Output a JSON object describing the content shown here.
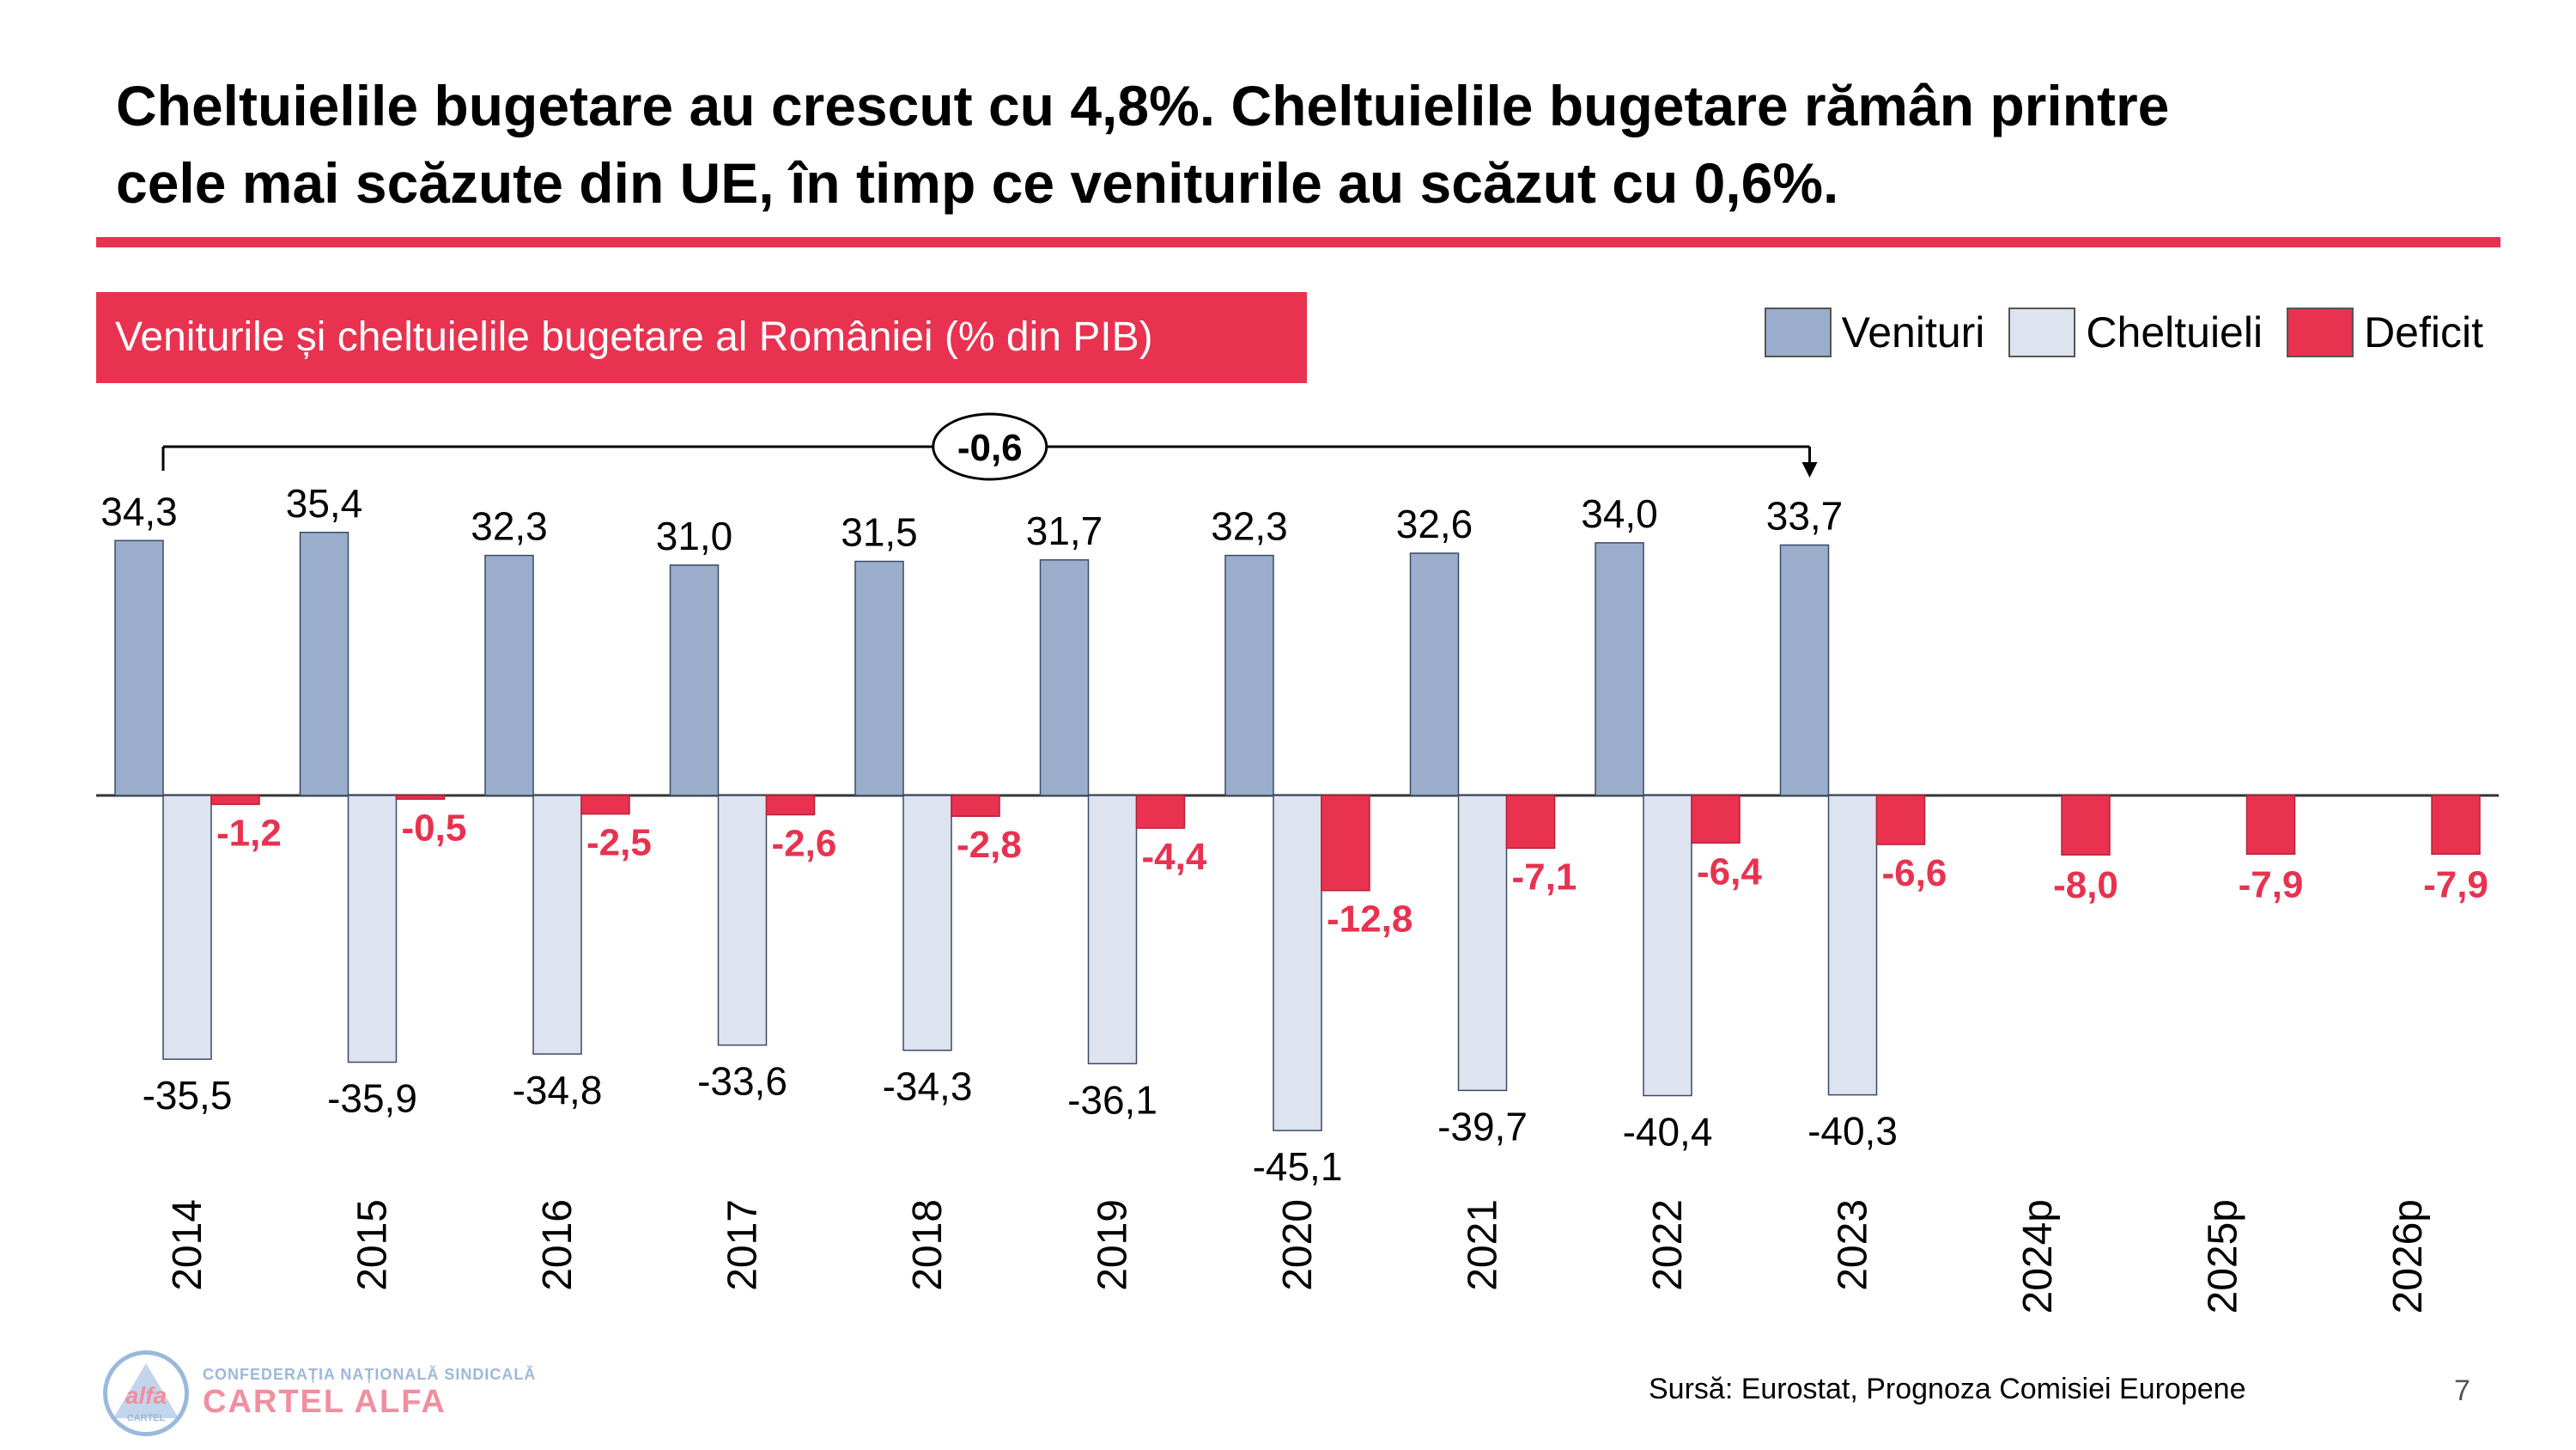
{
  "slide": {
    "title_line1": "Cheltuielile bugetare au crescut cu 4,8%. Cheltuielile bugetare rămân printre",
    "title_line2": "cele mai scăzute din UE, în timp ce veniturile au scăzut cu 0,6%.",
    "source": "Sursă: Eurostat, Prognoza Comisiei Europene",
    "page_number": "7",
    "logo": {
      "mark_text": "alfa",
      "mark_subtext": "CARTEL",
      "line1": "CONFEDERAȚIA NAȚIONALĂ SINDICALĂ",
      "line2": "CARTEL ALFA"
    }
  },
  "chart_data": {
    "type": "bar",
    "title": "Veniturile și cheltuielile bugetare al României (% din PIB)",
    "categories": [
      "2014",
      "2015",
      "2016",
      "2017",
      "2018",
      "2019",
      "2020",
      "2021",
      "2022",
      "2023",
      "2024p",
      "2025p",
      "2026p"
    ],
    "series": [
      {
        "name": "Venituri",
        "color": "#9aaecb",
        "values": [
          34.3,
          35.4,
          32.3,
          31.0,
          31.5,
          31.7,
          32.3,
          32.6,
          34.0,
          33.7,
          null,
          null,
          null
        ],
        "labels": [
          "34,3",
          "35,4",
          "32,3",
          "31,0",
          "31,5",
          "31,7",
          "32,3",
          "32,6",
          "34,0",
          "33,7",
          null,
          null,
          null
        ]
      },
      {
        "name": "Cheltuieli",
        "color": "#dde3ef",
        "values": [
          -35.5,
          -35.9,
          -34.8,
          -33.6,
          -34.3,
          -36.1,
          -45.1,
          -39.7,
          -40.4,
          -40.3,
          null,
          null,
          null
        ],
        "labels": [
          "-35,5",
          "-35,9",
          "-34,8",
          "-33,6",
          "-34,3",
          "-36,1",
          "-45,1",
          "-39,7",
          "-40,4",
          "-40,3",
          null,
          null,
          null
        ]
      },
      {
        "name": "Deficit",
        "color": "#e8324f",
        "values": [
          -1.2,
          -0.5,
          -2.5,
          -2.6,
          -2.8,
          -4.4,
          -12.8,
          -7.1,
          -6.4,
          -6.6,
          -8.0,
          -7.9,
          -7.9
        ],
        "labels": [
          "-1,2",
          "-0,5",
          "-2,5",
          "-2,6",
          "-2,8",
          "-4,4",
          "-12,8",
          "-7,1",
          "-6,4",
          "-6,6",
          "-8,0",
          "-7,9",
          "-7,9"
        ]
      }
    ],
    "annotation": {
      "text": "-0,6",
      "from": "2014",
      "to": "2023"
    },
    "legend_position": "top-right",
    "grid": false
  }
}
